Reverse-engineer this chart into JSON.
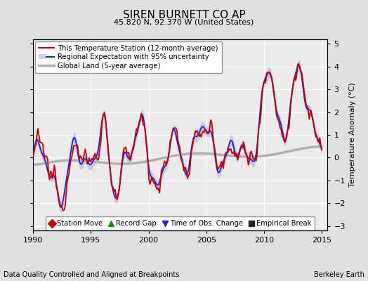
{
  "title": "SIREN BURNETT CO AP",
  "subtitle": "45.820 N, 92.370 W (United States)",
  "xlabel_bottom": "Data Quality Controlled and Aligned at Breakpoints",
  "xlabel_right": "Berkeley Earth",
  "ylabel": "Temperature Anomaly (°C)",
  "xlim": [
    1990,
    2015.5
  ],
  "ylim": [
    -3.2,
    5.2
  ],
  "yticks": [
    -3,
    -2,
    -1,
    0,
    1,
    2,
    3,
    4,
    5
  ],
  "xticks": [
    1990,
    1995,
    2000,
    2005,
    2010,
    2015
  ],
  "bg_color": "#e0e0e0",
  "plot_bg_color": "#ebebeb",
  "grid_color": "#ffffff",
  "uncertainty_color": "#aaaadd",
  "uncertainty_alpha": 0.55,
  "regional_color": "#2222cc",
  "station_color": "#cc0000",
  "global_color": "#b0b0b0",
  "legend_entries": [
    {
      "label": "This Temperature Station (12-month average)",
      "color": "#cc0000",
      "lw": 1.5
    },
    {
      "label": "Regional Expectation with 95% uncertainty",
      "color": "#2222cc",
      "lw": 1.5
    },
    {
      "label": "Global Land (5-year average)",
      "color": "#b0b0b0",
      "lw": 2.5
    }
  ],
  "marker_legend": [
    {
      "marker": "D",
      "color": "#cc0000",
      "label": "Station Move"
    },
    {
      "marker": "^",
      "color": "#228822",
      "label": "Record Gap"
    },
    {
      "marker": "v",
      "color": "#2222cc",
      "label": "Time of Obs. Change"
    },
    {
      "marker": "s",
      "color": "#222222",
      "label": "Empirical Break"
    }
  ]
}
